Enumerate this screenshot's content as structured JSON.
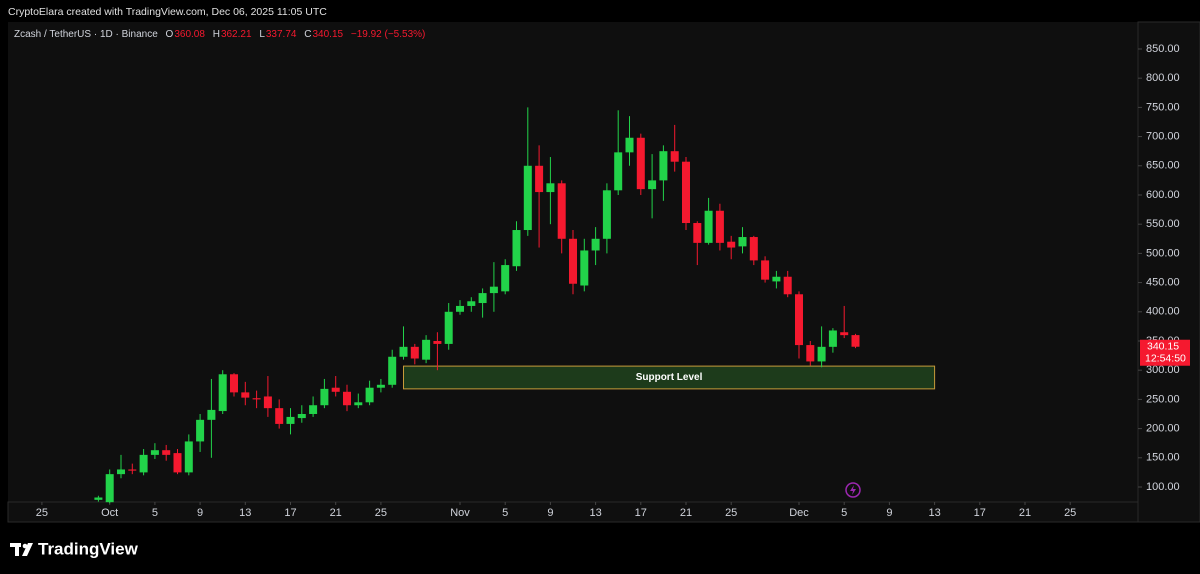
{
  "header": {
    "credit": "CryptoElara created with TradingView.com, Dec 06, 2025 11:05 UTC"
  },
  "footer": {
    "brand": "TradingView"
  },
  "chart_data": {
    "type": "candlestick",
    "title": "Zcash / TetherUS · 1D · Binance",
    "legend_labels": {
      "open": "O",
      "high": "H",
      "low": "L",
      "close": "C"
    },
    "change_text": "−19.92 (−5.53%)",
    "countdown": "12:54:50",
    "up_color": "#22d34a",
    "down_color": "#f5192f",
    "categories": [
      "2025-09-30",
      "2025-10-01",
      "2025-10-02",
      "2025-10-03",
      "2025-10-04",
      "2025-10-05",
      "2025-10-06",
      "2025-10-07",
      "2025-10-08",
      "2025-10-09",
      "2025-10-10",
      "2025-10-11",
      "2025-10-12",
      "2025-10-13",
      "2025-10-14",
      "2025-10-15",
      "2025-10-16",
      "2025-10-17",
      "2025-10-18",
      "2025-10-19",
      "2025-10-20",
      "2025-10-21",
      "2025-10-22",
      "2025-10-23",
      "2025-10-24",
      "2025-10-25",
      "2025-10-26",
      "2025-10-27",
      "2025-10-28",
      "2025-10-29",
      "2025-10-30",
      "2025-10-31",
      "2025-11-01",
      "2025-11-02",
      "2025-11-03",
      "2025-11-04",
      "2025-11-05",
      "2025-11-06",
      "2025-11-07",
      "2025-11-08",
      "2025-11-09",
      "2025-11-10",
      "2025-11-11",
      "2025-11-12",
      "2025-11-13",
      "2025-11-14",
      "2025-11-15",
      "2025-11-16",
      "2025-11-17",
      "2025-11-18",
      "2025-11-19",
      "2025-11-20",
      "2025-11-21",
      "2025-11-22",
      "2025-11-23",
      "2025-11-24",
      "2025-11-25",
      "2025-11-26",
      "2025-11-27",
      "2025-11-28",
      "2025-11-29",
      "2025-11-30",
      "2025-12-01",
      "2025-12-02",
      "2025-12-03",
      "2025-12-04",
      "2025-12-05",
      "2025-12-06"
    ],
    "open": [
      78,
      74,
      122,
      130,
      125,
      155,
      163,
      158,
      125,
      178,
      215,
      230,
      293,
      262,
      252,
      255,
      235,
      208,
      218,
      225,
      240,
      270,
      263,
      240,
      245,
      270,
      275,
      323,
      340,
      318,
      350,
      345,
      400,
      410,
      415,
      432,
      435,
      478,
      540,
      650,
      605,
      620,
      525,
      445,
      505,
      525,
      608,
      673,
      698,
      610,
      625,
      675,
      657,
      552,
      518,
      573,
      520,
      512,
      528,
      488,
      452,
      460,
      430,
      343,
      315,
      340,
      365,
      360.08
    ],
    "high": [
      85,
      130,
      155,
      140,
      165,
      175,
      172,
      165,
      190,
      225,
      285,
      300,
      295,
      280,
      265,
      290,
      250,
      235,
      240,
      255,
      285,
      290,
      275,
      260,
      282,
      285,
      335,
      375,
      345,
      360,
      365,
      415,
      420,
      425,
      440,
      485,
      490,
      555,
      750,
      685,
      665,
      625,
      540,
      525,
      545,
      620,
      745,
      735,
      705,
      670,
      685,
      720,
      665,
      555,
      595,
      585,
      530,
      545,
      530,
      495,
      470,
      470,
      435,
      350,
      375,
      372,
      410,
      362.21
    ],
    "low": [
      75,
      72,
      115,
      122,
      120,
      148,
      145,
      122,
      120,
      160,
      150,
      225,
      255,
      240,
      235,
      220,
      200,
      190,
      210,
      220,
      235,
      255,
      230,
      235,
      240,
      262,
      270,
      318,
      310,
      312,
      300,
      335,
      395,
      400,
      390,
      400,
      430,
      470,
      530,
      510,
      550,
      500,
      430,
      435,
      480,
      500,
      600,
      650,
      600,
      560,
      590,
      640,
      540,
      480,
      515,
      505,
      490,
      500,
      480,
      450,
      440,
      425,
      320,
      308,
      305,
      330,
      355,
      337.74
    ],
    "close": [
      82,
      122,
      130,
      128,
      155,
      163,
      155,
      125,
      178,
      215,
      232,
      293,
      262,
      253,
      250,
      235,
      208,
      220,
      225,
      240,
      268,
      263,
      240,
      245,
      270,
      275,
      323,
      340,
      320,
      352,
      345,
      400,
      410,
      418,
      432,
      443,
      480,
      540,
      650,
      605,
      620,
      525,
      448,
      505,
      525,
      608,
      673,
      698,
      610,
      625,
      675,
      657,
      552,
      518,
      573,
      518,
      510,
      528,
      488,
      455,
      460,
      430,
      343,
      315,
      340,
      368,
      360,
      340.15
    ],
    "support_zone": {
      "label": "Support Level",
      "range": [
        268,
        307
      ],
      "start": "2025-10-27",
      "end": "2025-12-13"
    },
    "xlim": [
      "2025-09-22",
      "2025-12-31"
    ],
    "xticks": [
      {
        "value": "2025-09-25",
        "label": "25"
      },
      {
        "value": "2025-10-01",
        "label": "Oct"
      },
      {
        "value": "2025-10-05",
        "label": "5"
      },
      {
        "value": "2025-10-09",
        "label": "9"
      },
      {
        "value": "2025-10-13",
        "label": "13"
      },
      {
        "value": "2025-10-17",
        "label": "17"
      },
      {
        "value": "2025-10-21",
        "label": "21"
      },
      {
        "value": "2025-10-25",
        "label": "25"
      },
      {
        "value": "2025-11-01",
        "label": "Nov"
      },
      {
        "value": "2025-11-05",
        "label": "5"
      },
      {
        "value": "2025-11-09",
        "label": "9"
      },
      {
        "value": "2025-11-13",
        "label": "13"
      },
      {
        "value": "2025-11-17",
        "label": "17"
      },
      {
        "value": "2025-11-21",
        "label": "21"
      },
      {
        "value": "2025-11-25",
        "label": "25"
      },
      {
        "value": "2025-12-01",
        "label": "Dec"
      },
      {
        "value": "2025-12-05",
        "label": "5"
      },
      {
        "value": "2025-12-09",
        "label": "9"
      },
      {
        "value": "2025-12-13",
        "label": "13"
      },
      {
        "value": "2025-12-17",
        "label": "17"
      },
      {
        "value": "2025-12-21",
        "label": "21"
      },
      {
        "value": "2025-12-25",
        "label": "25"
      }
    ],
    "ylim": [
      74.3,
      896.2
    ],
    "yticks": [
      {
        "value": 100,
        "label": "100.00"
      },
      {
        "value": 150,
        "label": "150.00"
      },
      {
        "value": 200,
        "label": "200.00"
      },
      {
        "value": 250,
        "label": "250.00"
      },
      {
        "value": 300,
        "label": "300.00"
      },
      {
        "value": 350,
        "label": "350.00"
      },
      {
        "value": 400,
        "label": "400.00"
      },
      {
        "value": 450,
        "label": "450.00"
      },
      {
        "value": 500,
        "label": "500.00"
      },
      {
        "value": 550,
        "label": "550.00"
      },
      {
        "value": 600,
        "label": "600.00"
      },
      {
        "value": 650,
        "label": "650.00"
      },
      {
        "value": 700,
        "label": "700.00"
      },
      {
        "value": 750,
        "label": "750.00"
      },
      {
        "value": 800,
        "label": "800.00"
      },
      {
        "value": 850,
        "label": "850.00"
      }
    ]
  }
}
